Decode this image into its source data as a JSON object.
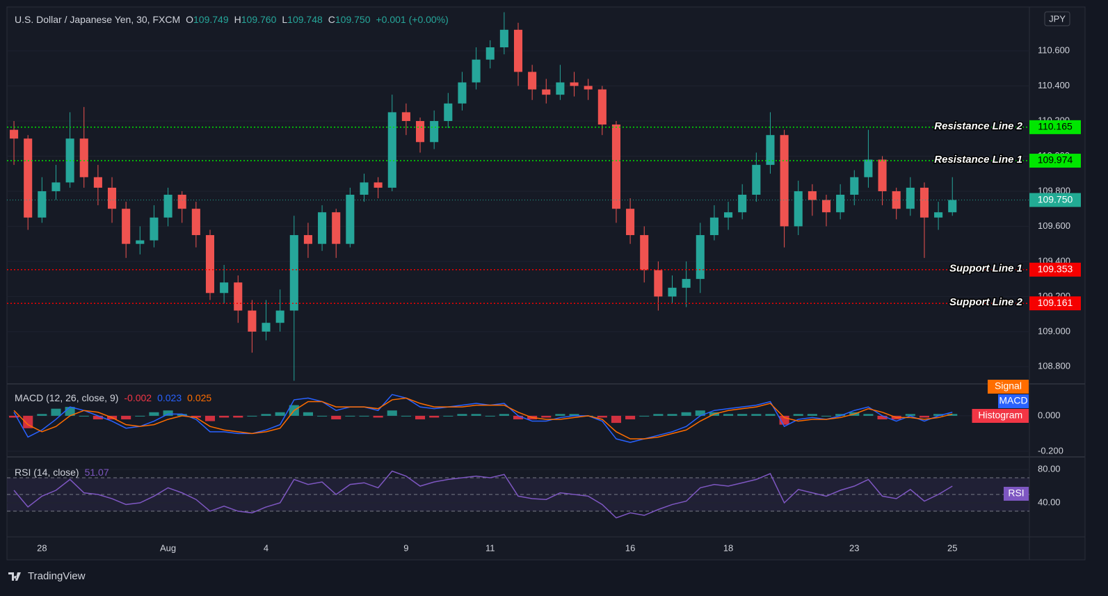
{
  "chart_data": [
    {
      "type": "candlestick",
      "title": "U.S. Dollar / Japanese Yen, 30, FXCM",
      "ohlc_legend": [
        {
          "key": "O",
          "value": "109.749"
        },
        {
          "key": "H",
          "value": "109.760"
        },
        {
          "key": "L",
          "value": "109.748"
        },
        {
          "key": "C",
          "value": "109.750"
        }
      ],
      "change": "+0.001 (+0.00%)",
      "currency": "JPY",
      "categories": [
        null,
        null,
        "28",
        null,
        null,
        null,
        null,
        null,
        null,
        null,
        null,
        "Aug",
        null,
        null,
        null,
        null,
        null,
        null,
        "4",
        null,
        null,
        null,
        null,
        null,
        null,
        null,
        null,
        null,
        "9",
        null,
        null,
        null,
        null,
        null,
        "11",
        null,
        null,
        null,
        null,
        null,
        null,
        null,
        null,
        null,
        "16",
        null,
        null,
        null,
        null,
        null,
        null,
        "18",
        null,
        null,
        null,
        null,
        null,
        null,
        null,
        null,
        "23",
        null,
        null,
        null,
        null,
        null,
        null,
        "25",
        null,
        null,
        null,
        null,
        null
      ],
      "open": [
        110.15,
        110.1,
        109.65,
        109.8,
        109.85,
        110.1,
        109.88,
        109.82,
        109.7,
        109.5,
        109.52,
        109.65,
        109.78,
        109.7,
        109.55,
        109.22,
        109.28,
        109.12,
        109.0,
        109.05,
        109.12,
        109.55,
        109.5,
        109.68,
        109.5,
        109.78,
        109.85,
        109.82,
        110.25,
        110.2,
        110.08,
        110.2,
        110.3,
        110.42,
        110.55,
        110.62,
        110.72,
        110.48,
        110.38,
        110.35,
        110.42,
        110.4,
        110.38,
        110.18,
        109.7,
        109.55,
        109.35,
        109.2,
        109.25,
        109.3,
        109.55,
        109.65,
        109.68,
        109.78,
        109.95,
        110.12,
        109.6,
        109.8,
        109.75,
        109.68,
        109.78,
        109.88,
        109.98,
        109.8,
        109.7,
        109.82,
        109.65,
        109.68,
        null,
        null,
        null,
        null,
        null
      ],
      "high": [
        110.2,
        110.12,
        109.88,
        109.95,
        110.25,
        110.28,
        109.95,
        109.88,
        109.74,
        109.6,
        109.72,
        109.82,
        109.8,
        109.74,
        109.58,
        109.38,
        109.32,
        109.18,
        109.18,
        109.24,
        109.66,
        109.62,
        109.72,
        109.7,
        109.82,
        109.9,
        109.88,
        110.35,
        110.3,
        110.22,
        110.26,
        110.36,
        110.48,
        110.62,
        110.66,
        110.82,
        110.76,
        110.52,
        110.44,
        110.52,
        110.48,
        110.44,
        110.4,
        110.2,
        109.76,
        109.6,
        109.4,
        109.32,
        109.4,
        109.62,
        109.72,
        109.74,
        109.84,
        110.02,
        110.25,
        110.15,
        109.86,
        109.84,
        109.78,
        109.84,
        109.92,
        110.15,
        110.0,
        109.82,
        109.88,
        109.85,
        109.74,
        109.88,
        null,
        null,
        null,
        null,
        null
      ],
      "low": [
        109.95,
        109.58,
        109.62,
        109.75,
        109.82,
        109.82,
        109.72,
        109.62,
        109.42,
        109.44,
        109.48,
        109.6,
        109.62,
        109.48,
        109.18,
        109.16,
        109.05,
        108.88,
        108.95,
        109.0,
        108.72,
        109.42,
        109.46,
        109.42,
        109.48,
        109.74,
        109.76,
        109.8,
        110.12,
        110.02,
        110.04,
        110.16,
        110.26,
        110.38,
        110.5,
        110.58,
        110.4,
        110.32,
        110.3,
        110.32,
        110.34,
        110.32,
        110.12,
        109.62,
        109.5,
        109.28,
        109.12,
        109.16,
        109.14,
        109.22,
        109.52,
        109.58,
        109.64,
        109.74,
        109.9,
        109.48,
        109.55,
        109.66,
        109.6,
        109.64,
        109.72,
        109.82,
        109.72,
        109.64,
        109.66,
        109.42,
        109.58,
        109.66,
        null,
        null,
        null,
        null,
        null
      ],
      "close": [
        110.1,
        109.65,
        109.8,
        109.85,
        110.1,
        109.88,
        109.82,
        109.7,
        109.5,
        109.52,
        109.65,
        109.78,
        109.7,
        109.55,
        109.22,
        109.28,
        109.12,
        109.0,
        109.05,
        109.12,
        109.55,
        109.5,
        109.68,
        109.5,
        109.78,
        109.85,
        109.82,
        110.25,
        110.2,
        110.08,
        110.2,
        110.3,
        110.42,
        110.55,
        110.62,
        110.72,
        110.48,
        110.38,
        110.35,
        110.42,
        110.4,
        110.38,
        110.18,
        109.7,
        109.55,
        109.35,
        109.2,
        109.25,
        109.3,
        109.55,
        109.65,
        109.68,
        109.78,
        109.95,
        110.12,
        109.6,
        109.8,
        109.75,
        109.68,
        109.78,
        109.88,
        109.98,
        109.8,
        109.7,
        109.82,
        109.65,
        109.68,
        109.75,
        null,
        null,
        null,
        null,
        null
      ],
      "up_color": "#26a69a",
      "down_color": "#ef5350",
      "ylim": [
        108.71,
        110.85
      ],
      "yticks": [
        {
          "value": 110.6,
          "label": "110.600"
        },
        {
          "value": 110.4,
          "label": "110.400"
        },
        {
          "value": 110.2,
          "label": "110.200"
        },
        {
          "value": 110.0,
          "label": "110.000"
        },
        {
          "value": 109.8,
          "label": "109.800"
        },
        {
          "value": 109.6,
          "label": "109.600"
        },
        {
          "value": 109.4,
          "label": "109.400"
        },
        {
          "value": 109.2,
          "label": "109.200"
        },
        {
          "value": 109.0,
          "label": "109.000"
        },
        {
          "value": 108.8,
          "label": "108.800"
        }
      ],
      "grid": true,
      "levels": [
        {
          "name": "Resistance Line 2",
          "value": 110.165,
          "color": "#00e600"
        },
        {
          "name": "Resistance Line 1",
          "value": 109.974,
          "color": "#00e600"
        },
        {
          "name": "Support Line 1",
          "value": 109.353,
          "color": "#f50000"
        },
        {
          "name": "Support Line 2",
          "value": 109.161,
          "color": "#f50000"
        }
      ],
      "last_price": {
        "value": 109.75,
        "label": "109.750",
        "color": "#22ab94"
      }
    },
    {
      "type": "macd",
      "title": "MACD (12, 26, close, 9)",
      "series": [
        {
          "name": "Histogram",
          "color": "#f23645",
          "legend_value": "-0.002",
          "values": [
            -0.01,
            -0.07,
            0.01,
            0.04,
            0.05,
            0.0,
            -0.02,
            -0.02,
            -0.02,
            0.0,
            0.02,
            0.03,
            0.01,
            -0.01,
            -0.03,
            -0.01,
            -0.01,
            0.0,
            0.01,
            0.02,
            0.06,
            0.02,
            0.0,
            -0.02,
            0.0,
            0.0,
            -0.01,
            0.03,
            0.0,
            -0.02,
            -0.01,
            0.0,
            0.01,
            0.01,
            0.0,
            0.01,
            -0.02,
            -0.02,
            -0.01,
            0.01,
            0.01,
            0.0,
            -0.01,
            -0.04,
            -0.02,
            0.0,
            0.01,
            0.01,
            0.02,
            0.03,
            0.02,
            0.01,
            0.01,
            0.01,
            0.01,
            -0.05,
            0.01,
            0.01,
            0.0,
            0.01,
            0.02,
            0.01,
            -0.02,
            -0.02,
            0.01,
            -0.01,
            0.01,
            0.01
          ]
        },
        {
          "name": "MACD",
          "color": "#2962ff",
          "legend_value": "0.023",
          "values": [
            0.02,
            -0.12,
            -0.08,
            -0.02,
            0.05,
            0.03,
            0.0,
            -0.03,
            -0.07,
            -0.06,
            -0.03,
            0.01,
            0.01,
            -0.02,
            -0.09,
            -0.09,
            -0.1,
            -0.1,
            -0.08,
            -0.05,
            0.09,
            0.1,
            0.08,
            0.03,
            0.05,
            0.05,
            0.03,
            0.12,
            0.1,
            0.05,
            0.04,
            0.05,
            0.06,
            0.07,
            0.06,
            0.07,
            0.0,
            -0.03,
            -0.03,
            -0.01,
            0.0,
            0.0,
            -0.03,
            -0.13,
            -0.15,
            -0.13,
            -0.11,
            -0.09,
            -0.06,
            0.0,
            0.03,
            0.04,
            0.05,
            0.06,
            0.08,
            -0.06,
            -0.02,
            -0.01,
            -0.02,
            0.0,
            0.03,
            0.05,
            0.0,
            -0.03,
            0.0,
            -0.03,
            0.0,
            0.02
          ]
        },
        {
          "name": "Signal",
          "color": "#ff6d00",
          "legend_value": "0.025",
          "values": [
            0.03,
            -0.05,
            -0.09,
            -0.06,
            0.0,
            0.03,
            0.02,
            -0.01,
            -0.05,
            -0.06,
            -0.05,
            -0.02,
            0.0,
            -0.01,
            -0.06,
            -0.08,
            -0.09,
            -0.1,
            -0.09,
            -0.07,
            0.03,
            0.08,
            0.08,
            0.05,
            0.05,
            0.05,
            0.04,
            0.09,
            0.1,
            0.07,
            0.05,
            0.05,
            0.05,
            0.06,
            0.06,
            0.06,
            0.02,
            -0.01,
            -0.02,
            -0.02,
            -0.01,
            0.0,
            -0.02,
            -0.09,
            -0.13,
            -0.13,
            -0.12,
            -0.1,
            -0.08,
            -0.03,
            0.01,
            0.03,
            0.04,
            0.05,
            0.07,
            -0.01,
            -0.03,
            -0.02,
            -0.02,
            -0.01,
            0.01,
            0.04,
            0.02,
            -0.01,
            -0.01,
            -0.02,
            -0.01,
            0.01
          ]
        }
      ],
      "ylim": [
        -0.224,
        0.176
      ],
      "yticks": [
        {
          "value": 0,
          "label": "0.000"
        },
        {
          "value": -0.2,
          "label": "-0.200"
        }
      ]
    },
    {
      "type": "line",
      "title": "RSI (14, close)",
      "series": [
        {
          "name": "RSI",
          "color": "#7e57c2",
          "legend_value": "51.07",
          "values": [
            55,
            35,
            48,
            55,
            68,
            52,
            50,
            45,
            38,
            40,
            48,
            58,
            52,
            44,
            30,
            36,
            30,
            28,
            35,
            40,
            68,
            62,
            65,
            50,
            62,
            64,
            58,
            78,
            72,
            60,
            65,
            68,
            70,
            72,
            70,
            74,
            48,
            45,
            44,
            52,
            50,
            48,
            38,
            22,
            28,
            25,
            32,
            38,
            42,
            58,
            62,
            60,
            64,
            68,
            75,
            40,
            56,
            52,
            48,
            55,
            60,
            68,
            48,
            45,
            56,
            42,
            50,
            60
          ]
        }
      ],
      "levels": [
        70,
        50,
        30
      ],
      "ylim": [
        -0.8,
        92.5
      ],
      "yticks": [
        {
          "value": 80,
          "label": "80.00"
        },
        {
          "value": 40,
          "label": "40.00"
        }
      ]
    }
  ],
  "footer": {
    "brand": "TradingView"
  }
}
